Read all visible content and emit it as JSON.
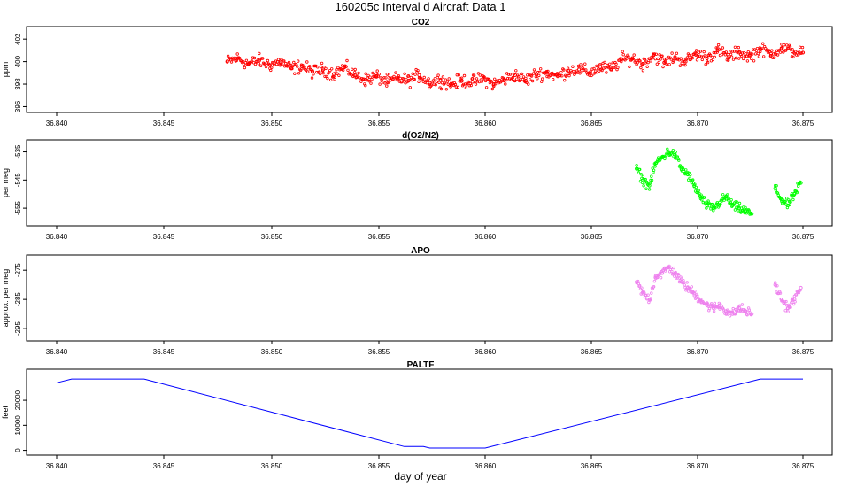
{
  "title": "160205c   Interval d Aircraft Data 1",
  "xlabel": "day of year",
  "chart_data": [
    {
      "type": "scatter",
      "title": "CO2",
      "ylabel": "ppm",
      "xlim": [
        36.84,
        36.875
      ],
      "ylim": [
        395.8,
        402.8
      ],
      "xticks": [
        "36.840",
        "36.845",
        "36.850",
        "36.855",
        "36.860",
        "36.865",
        "36.870",
        "36.875"
      ],
      "yticks": [
        "396",
        "398",
        "400",
        "402"
      ],
      "color": "#ff0000",
      "series": [
        {
          "x": [
            36.848,
            36.8485,
            36.849,
            36.8495,
            36.85,
            36.8505,
            36.851,
            36.8515,
            36.852,
            36.8525,
            36.853,
            36.8535,
            36.854,
            36.8545,
            36.855,
            36.8555,
            36.856,
            36.8565,
            36.857,
            36.8575,
            36.858,
            36.8585,
            36.859,
            36.8595,
            36.86,
            36.8605,
            36.861,
            36.8615,
            36.862,
            36.8625,
            36.863,
            36.8635,
            36.864,
            36.8645,
            36.865,
            36.8655,
            36.866,
            36.8665,
            36.867,
            36.8675,
            36.868,
            36.8685,
            36.869,
            36.8695,
            36.87,
            36.8705,
            36.871,
            36.8715,
            36.872,
            36.8725,
            36.873,
            36.8735,
            36.874,
            36.8745,
            36.875
          ],
          "y": [
            400.0,
            400.3,
            399.8,
            400.1,
            399.7,
            400.0,
            399.4,
            399.6,
            399.1,
            399.3,
            398.9,
            399.5,
            398.8,
            398.4,
            398.7,
            398.2,
            398.5,
            398.3,
            398.8,
            398.1,
            398.4,
            398.0,
            398.3,
            398.2,
            398.5,
            398.0,
            398.4,
            398.8,
            398.3,
            398.9,
            399.0,
            398.7,
            399.2,
            399.3,
            399.0,
            399.5,
            399.3,
            400.2,
            400.3,
            399.8,
            400.6,
            399.9,
            400.4,
            400.0,
            400.7,
            400.3,
            401.0,
            400.4,
            400.8,
            400.5,
            401.1,
            400.7,
            401.2,
            400.9,
            400.8
          ]
        }
      ]
    },
    {
      "type": "scatter",
      "title": "d(O2/N2)",
      "ylabel": "per meg",
      "xlim": [
        36.84,
        36.875
      ],
      "ylim": [
        -560,
        -532
      ],
      "xticks": [
        "36.840",
        "36.845",
        "36.850",
        "36.855",
        "36.860",
        "36.865",
        "36.870",
        "36.875"
      ],
      "yticks": [
        "-555",
        "-545",
        "-535"
      ],
      "color": "#00ff00",
      "series": [
        {
          "x": [
            36.8672,
            36.8675,
            36.8678,
            36.8681,
            36.8684,
            36.8687,
            36.869,
            36.8693,
            36.8696,
            36.8699,
            36.8702,
            36.8705,
            36.8708,
            36.8711,
            36.8714,
            36.8717,
            36.872,
            36.8723,
            36.8726,
            36.8737,
            36.874,
            36.8743,
            36.8746,
            36.8749
          ],
          "y": [
            -541,
            -545,
            -547,
            -539,
            -537,
            -535,
            -536,
            -541,
            -543,
            -547,
            -551,
            -554,
            -555,
            -553,
            -551,
            -554,
            -555,
            -556,
            -557,
            -548,
            -552,
            -554,
            -550,
            -546
          ]
        }
      ]
    },
    {
      "type": "scatter",
      "title": "APO",
      "ylabel": "approx. per meg",
      "xlim": [
        36.84,
        36.875
      ],
      "ylim": [
        -298,
        -271
      ],
      "xticks": [
        "36.840",
        "36.845",
        "36.850",
        "36.855",
        "36.860",
        "36.865",
        "36.870",
        "36.875"
      ],
      "yticks": [
        "-295",
        "-285",
        "-275"
      ],
      "color": "#ee82ee",
      "series": [
        {
          "x": [
            36.8672,
            36.8675,
            36.8678,
            36.8681,
            36.8684,
            36.8687,
            36.869,
            36.8693,
            36.8696,
            36.8699,
            36.8702,
            36.8705,
            36.8708,
            36.8711,
            36.8714,
            36.8717,
            36.872,
            36.8723,
            36.8726,
            36.8737,
            36.874,
            36.8743,
            36.8746,
            36.8749
          ],
          "y": [
            -279,
            -283,
            -285,
            -277,
            -276,
            -274,
            -276,
            -279,
            -281,
            -283,
            -285,
            -287,
            -288,
            -287,
            -289,
            -290,
            -288,
            -289,
            -290,
            -280,
            -285,
            -288,
            -285,
            -281
          ]
        }
      ]
    },
    {
      "type": "line",
      "title": "PALTF",
      "ylabel": "feet",
      "xlim": [
        36.84,
        36.875
      ],
      "ylim": [
        -500,
        31000
      ],
      "xticks": [
        "36.840",
        "36.845",
        "36.850",
        "36.855",
        "36.860",
        "36.865",
        "36.870",
        "36.875"
      ],
      "yticks": [
        "0",
        "10000",
        "20000"
      ],
      "color": "#0000ff",
      "series": [
        {
          "x": [
            36.84,
            36.8407,
            36.8441,
            36.8563,
            36.8572,
            36.8575,
            36.8601,
            36.873,
            36.875
          ],
          "y": [
            27000,
            28500,
            28500,
            1500,
            1500,
            900,
            900,
            28500,
            28500
          ]
        }
      ]
    }
  ]
}
